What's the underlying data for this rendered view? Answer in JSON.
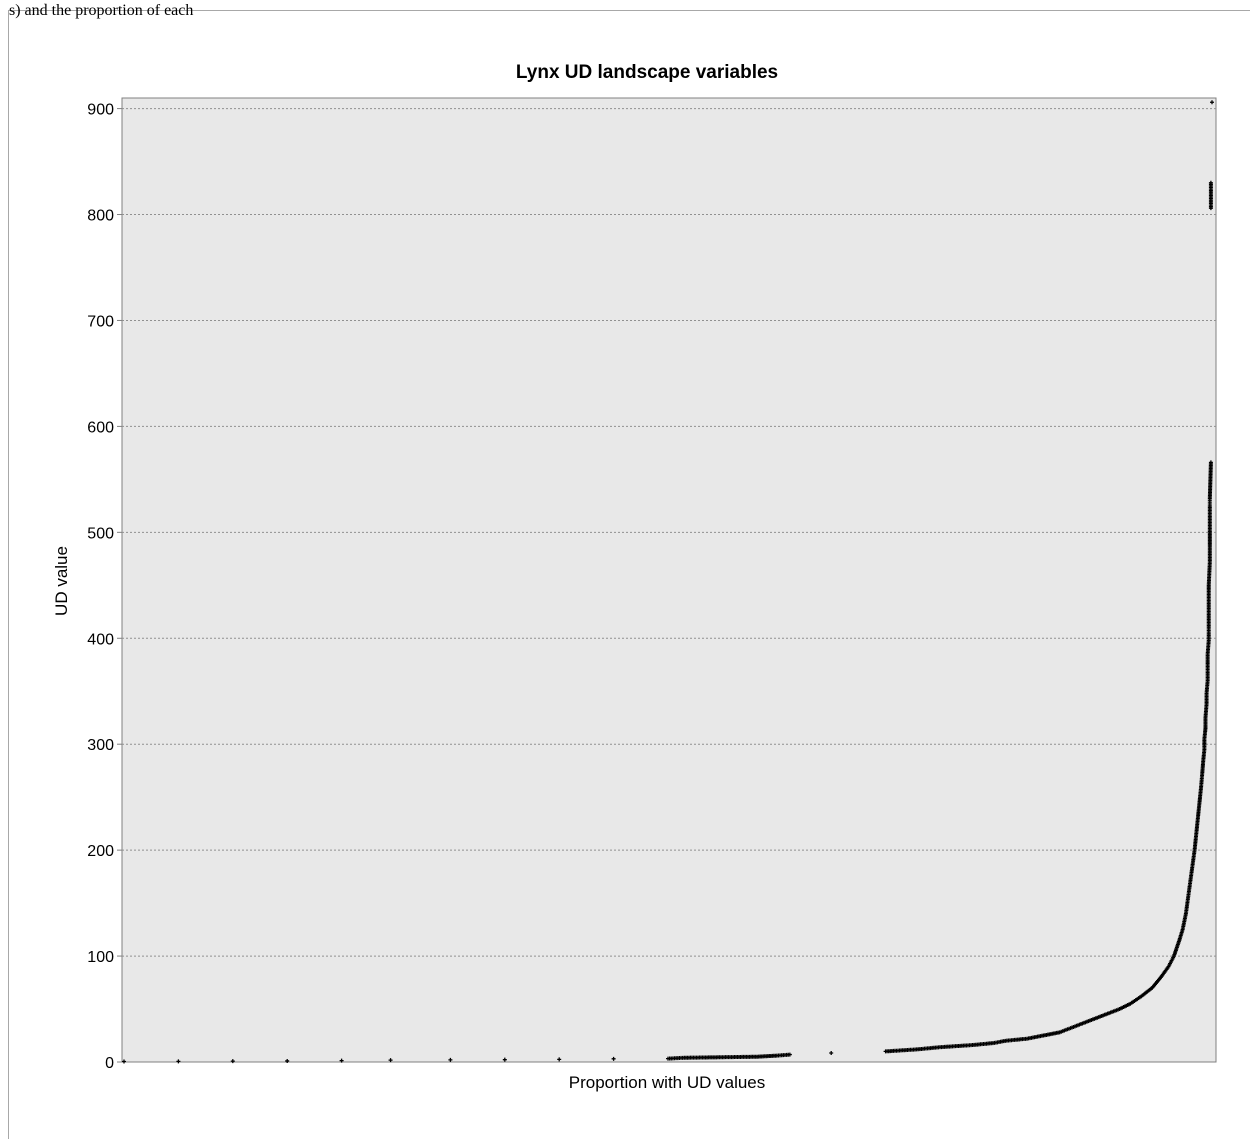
{
  "page": {
    "top_clipped_text": "s) and the proportion of each"
  },
  "chart_data": {
    "type": "scatter",
    "title": "Lynx UD landscape variables",
    "xlabel": "Proportion with UD values",
    "ylabel": "UD value",
    "xlim": [
      0,
      1
    ],
    "ylim": [
      0,
      910
    ],
    "yticks": [
      0,
      100,
      200,
      300,
      400,
      500,
      600,
      700,
      800,
      900
    ],
    "grid": true,
    "colors": {
      "plot_bg": "#e8e8e8",
      "points": "#000000",
      "grid": "#909090"
    },
    "series": [
      {
        "points": [
          [
            0.0,
            0.5
          ],
          [
            0.05,
            0.6
          ],
          [
            0.1,
            0.8
          ],
          [
            0.15,
            1.0
          ],
          [
            0.2,
            1.3
          ],
          [
            0.245,
            1.8
          ],
          [
            0.3,
            2.0
          ],
          [
            0.35,
            2.2
          ],
          [
            0.4,
            2.5
          ],
          [
            0.45,
            3.0
          ],
          [
            0.5,
            3.2
          ],
          [
            0.515,
            4.0
          ],
          [
            0.55,
            4.5
          ],
          [
            0.582,
            5.0
          ],
          [
            0.6,
            6.0
          ],
          [
            0.612,
            7.0
          ],
          [
            0.65,
            8.5
          ],
          [
            0.7,
            10.0
          ],
          [
            0.73,
            12.0
          ],
          [
            0.75,
            14.0
          ],
          [
            0.78,
            16.0
          ],
          [
            0.8,
            18.0
          ],
          [
            0.81,
            20.0
          ],
          [
            0.83,
            22.0
          ],
          [
            0.845,
            25.0
          ],
          [
            0.86,
            28.0
          ],
          [
            0.87,
            32.0
          ],
          [
            0.885,
            38.0
          ],
          [
            0.9,
            44.0
          ],
          [
            0.915,
            50.0
          ],
          [
            0.925,
            55.0
          ],
          [
            0.935,
            62.0
          ],
          [
            0.945,
            70.0
          ],
          [
            0.953,
            80.0
          ],
          [
            0.96,
            90.0
          ],
          [
            0.965,
            100.0
          ],
          [
            0.97,
            115.0
          ],
          [
            0.973,
            125.0
          ],
          [
            0.976,
            140.0
          ],
          [
            0.978,
            155.0
          ],
          [
            0.98,
            170.0
          ],
          [
            0.982,
            185.0
          ],
          [
            0.984,
            200.0
          ],
          [
            0.985,
            210.0
          ],
          [
            0.986,
            220.0
          ],
          [
            0.987,
            230.0
          ],
          [
            0.988,
            240.0
          ],
          [
            0.989,
            250.0
          ],
          [
            0.99,
            260.0
          ],
          [
            0.991,
            272.0
          ],
          [
            0.992,
            285.0
          ],
          [
            0.993,
            295.0
          ],
          [
            0.993,
            305.0
          ],
          [
            0.994,
            315.0
          ],
          [
            0.994,
            325.0
          ],
          [
            0.995,
            338.0
          ],
          [
            0.995,
            348.0
          ],
          [
            0.996,
            360.0
          ],
          [
            0.996,
            372.0
          ],
          [
            0.996,
            385.0
          ],
          [
            0.997,
            398.0
          ],
          [
            0.997,
            412.0
          ],
          [
            0.997,
            440.0
          ],
          [
            0.997,
            450.0
          ],
          [
            0.998,
            472.0
          ],
          [
            0.998,
            485.0
          ],
          [
            0.998,
            512.0
          ],
          [
            0.998,
            525.0
          ],
          [
            0.998,
            532.0
          ],
          [
            0.999,
            566.0
          ],
          [
            0.999,
            806.0
          ],
          [
            0.999,
            830.0
          ],
          [
            1.0,
            906.0
          ]
        ]
      }
    ]
  }
}
